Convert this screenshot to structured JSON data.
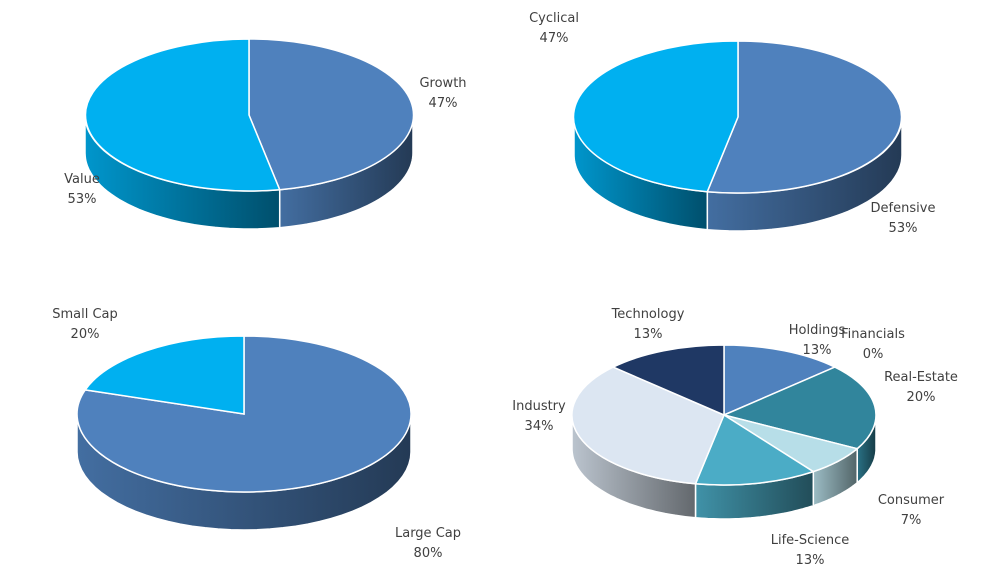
{
  "chart_data": [
    {
      "type": "pie",
      "categories": [
        "Growth",
        "Value"
      ],
      "values": [
        47,
        53
      ],
      "data_labels": [
        "47%",
        "53%"
      ],
      "colors": [
        "#4F81BD",
        "#00B0F0"
      ]
    },
    {
      "type": "pie",
      "categories": [
        "Defensive",
        "Cyclical"
      ],
      "values": [
        53,
        47
      ],
      "data_labels": [
        "53%",
        "47%"
      ],
      "colors": [
        "#4F81BD",
        "#00B0F0"
      ]
    },
    {
      "type": "pie",
      "categories": [
        "Large Cap",
        "Small Cap"
      ],
      "values": [
        80,
        20
      ],
      "data_labels": [
        "80%",
        "20%"
      ],
      "colors": [
        "#4F81BD",
        "#00B0F0"
      ]
    },
    {
      "type": "pie",
      "categories": [
        "Holdings",
        "Financials",
        "Real-Estate",
        "Consumer",
        "Life-Science",
        "Industry",
        "Technology"
      ],
      "values": [
        13,
        0,
        20,
        7,
        13,
        34,
        13
      ],
      "data_labels": [
        "13%",
        "0%",
        "20%",
        "7%",
        "13%",
        "34%",
        "13%"
      ],
      "colors": [
        "#4F81BD",
        "#2E6F8E",
        "#31859C",
        "#B7DEE8",
        "#4BACC6",
        "#DCE6F2",
        "#1F3864"
      ]
    }
  ]
}
